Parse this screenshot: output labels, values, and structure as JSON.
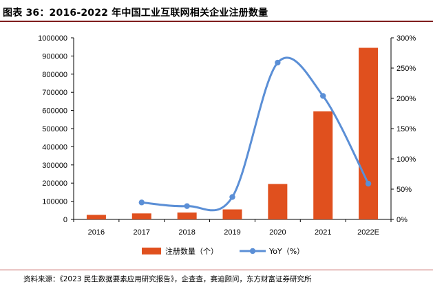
{
  "title": "图表 36：2016-2022 年中国工业互联网相关企业注册数量",
  "source": "资料来源：《2023 民生数据要素应用研究报告》，企查查，赛迪顾问，东方财富证券研究所",
  "chart_data": {
    "type": "bar",
    "categories": [
      "2016",
      "2017",
      "2018",
      "2019",
      "2020",
      "2021",
      "2022E"
    ],
    "series": [
      {
        "name": "注册数量（个）",
        "type": "bar",
        "axis": "left",
        "color": "#e0501e",
        "values": [
          25000,
          33000,
          38000,
          55000,
          195000,
          595000,
          945000
        ]
      },
      {
        "name": "YoY（%）",
        "type": "line",
        "axis": "right",
        "color": "#5b8fd6",
        "values": [
          null,
          28,
          22,
          37,
          259,
          204,
          59
        ]
      }
    ],
    "y_left": {
      "min": 0,
      "max": 1000000,
      "step": 100000,
      "ticks": [
        "0",
        "100000",
        "200000",
        "300000",
        "400000",
        "500000",
        "600000",
        "700000",
        "800000",
        "900000",
        "1000000"
      ]
    },
    "y_right": {
      "min": 0,
      "max": 300,
      "step": 50,
      "ticks": [
        "0%",
        "50%",
        "100%",
        "150%",
        "200%",
        "250%",
        "300%"
      ]
    },
    "legend_position": "bottom",
    "grid": false
  }
}
